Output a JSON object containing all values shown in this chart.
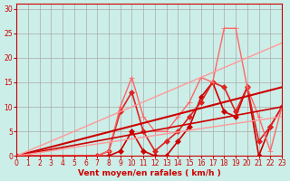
{
  "bg_color": "#cceee8",
  "grid_color": "#aaaaaa",
  "xlabel": "Vent moyen/en rafales ( km/h )",
  "xlabel_color": "#cc0000",
  "tick_color": "#cc0000",
  "xlim": [
    0,
    23
  ],
  "ylim": [
    0,
    31
  ],
  "xticks": [
    0,
    1,
    2,
    3,
    4,
    5,
    6,
    7,
    8,
    9,
    10,
    11,
    12,
    13,
    14,
    15,
    16,
    17,
    18,
    19,
    20,
    21,
    22,
    23
  ],
  "yticks": [
    0,
    5,
    10,
    15,
    20,
    25,
    30
  ],
  "lines": [
    {
      "x": [
        0,
        7,
        8,
        9,
        10,
        11,
        12,
        13,
        14,
        15,
        16,
        17,
        18,
        19,
        20,
        21,
        22,
        23
      ],
      "y": [
        0,
        0,
        0,
        1,
        5,
        1,
        0,
        0,
        3,
        6,
        12,
        15,
        9,
        8,
        14,
        0,
        6,
        10
      ],
      "color": "#cc0000",
      "lw": 1.2,
      "marker": "D",
      "ms": 3
    },
    {
      "x": [
        0,
        7,
        8,
        9,
        10,
        11,
        12,
        13,
        14,
        15,
        16,
        17,
        18,
        19,
        20,
        21,
        22,
        23
      ],
      "y": [
        0,
        0,
        1,
        9,
        13,
        5,
        1,
        3,
        5,
        8,
        11,
        15,
        14,
        9,
        14,
        3,
        6,
        10
      ],
      "color": "#dd2222",
      "lw": 1.2,
      "marker": "D",
      "ms": 3
    },
    {
      "x": [
        0,
        7,
        8,
        9,
        10,
        11,
        12,
        13,
        14,
        15,
        16,
        17,
        18,
        19,
        20,
        21,
        22,
        23
      ],
      "y": [
        0,
        0,
        1,
        10,
        16,
        8,
        5,
        5,
        8,
        11,
        16,
        15,
        26,
        26,
        14,
        8,
        1,
        10
      ],
      "color": "#ff6666",
      "lw": 1.0,
      "marker": "+",
      "ms": 4
    },
    {
      "x": [
        0,
        23
      ],
      "y": [
        0,
        14
      ],
      "color": "#cc0000",
      "lw": 1.5,
      "marker": null,
      "ms": 0
    },
    {
      "x": [
        0,
        23
      ],
      "y": [
        0,
        10
      ],
      "color": "#cc0000",
      "lw": 1.2,
      "marker": null,
      "ms": 0
    },
    {
      "x": [
        0,
        23
      ],
      "y": [
        0,
        23
      ],
      "color": "#ff9999",
      "lw": 1.0,
      "marker": null,
      "ms": 0
    },
    {
      "x": [
        0,
        23
      ],
      "y": [
        0,
        8
      ],
      "color": "#ff9999",
      "lw": 1.0,
      "marker": null,
      "ms": 0
    }
  ]
}
